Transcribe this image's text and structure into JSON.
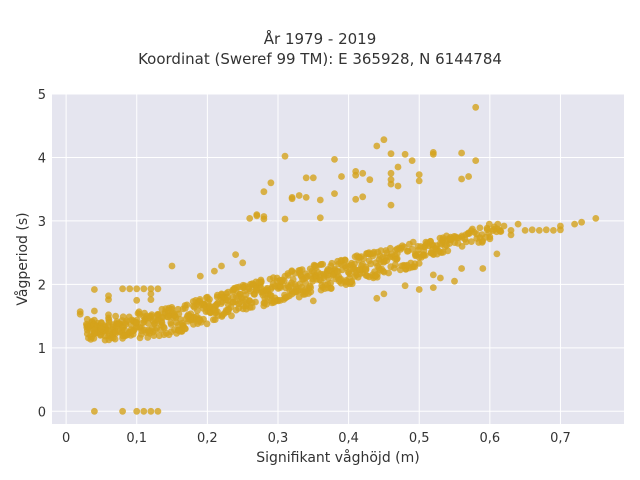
{
  "chart_data": {
    "type": "scatter",
    "title": "År 1979 - 2019",
    "subtitle": "Koordinat (Sweref 99 TM): E 365928, N 6144784",
    "xlabel": "Signifikant våghöjd (m)",
    "ylabel": "Vågperiod (s)",
    "xlim": [
      -0.02,
      0.79
    ],
    "ylim": [
      -0.2,
      5.0
    ],
    "x_ticks": [
      0,
      0.1,
      0.2,
      0.3,
      0.4,
      0.5,
      0.6,
      0.7
    ],
    "x_tick_labels": [
      "0",
      "0,1",
      "0,2",
      "0,3",
      "0,4",
      "0,5",
      "0,6",
      "0,7"
    ],
    "y_ticks": [
      0,
      1,
      2,
      3,
      4,
      5
    ],
    "y_tick_labels": [
      "0",
      "1",
      "2",
      "3",
      "4",
      "5"
    ],
    "grid": true,
    "colors": {
      "marker": "#d4a21c",
      "plot_bg": "#e5e5ef",
      "grid": "#ffffff"
    },
    "points": [
      [
        0.02,
        1.57
      ],
      [
        0.02,
        1.53
      ],
      [
        0.03,
        1.45
      ],
      [
        0.03,
        1.28
      ],
      [
        0.03,
        1.22
      ],
      [
        0.04,
        1.92
      ],
      [
        0.04,
        1.58
      ],
      [
        0.04,
        1.33
      ],
      [
        0.04,
        1.28
      ],
      [
        0.04,
        1.22
      ],
      [
        0.05,
        1.4
      ],
      [
        0.05,
        1.3
      ],
      [
        0.06,
        1.82
      ],
      [
        0.06,
        1.76
      ],
      [
        0.06,
        1.52
      ],
      [
        0.06,
        1.27
      ],
      [
        0.07,
        1.5
      ],
      [
        0.07,
        1.25
      ],
      [
        0.08,
        1.93
      ],
      [
        0.08,
        1.15
      ],
      [
        0.09,
        1.93
      ],
      [
        0.1,
        1.93
      ],
      [
        0.11,
        1.93
      ],
      [
        0.12,
        1.93
      ],
      [
        0.13,
        1.93
      ],
      [
        0.1,
        1.75
      ],
      [
        0.12,
        1.76
      ],
      [
        0.12,
        1.85
      ],
      [
        0.15,
        2.29
      ],
      [
        0.19,
        2.13
      ],
      [
        0.21,
        2.21
      ],
      [
        0.22,
        2.29
      ],
      [
        0.24,
        2.47
      ],
      [
        0.25,
        2.34
      ],
      [
        0.22,
        1.85
      ],
      [
        0.26,
        3.04
      ],
      [
        0.27,
        3.1
      ],
      [
        0.28,
        3.07
      ],
      [
        0.28,
        3.03
      ],
      [
        0.28,
        3.46
      ],
      [
        0.29,
        3.6
      ],
      [
        0.31,
        4.02
      ],
      [
        0.32,
        3.35
      ],
      [
        0.33,
        3.4
      ],
      [
        0.34,
        3.68
      ],
      [
        0.35,
        3.68
      ],
      [
        0.34,
        3.37
      ],
      [
        0.36,
        3.33
      ],
      [
        0.38,
        3.43
      ],
      [
        0.38,
        3.97
      ],
      [
        0.39,
        3.7
      ],
      [
        0.41,
        3.72
      ],
      [
        0.41,
        3.78
      ],
      [
        0.42,
        3.75
      ],
      [
        0.42,
        3.38
      ],
      [
        0.43,
        3.65
      ],
      [
        0.44,
        4.18
      ],
      [
        0.45,
        4.28
      ],
      [
        0.46,
        4.06
      ],
      [
        0.46,
        3.75
      ],
      [
        0.46,
        3.65
      ],
      [
        0.46,
        3.58
      ],
      [
        0.46,
        3.25
      ],
      [
        0.47,
        3.85
      ],
      [
        0.47,
        3.55
      ],
      [
        0.48,
        4.05
      ],
      [
        0.49,
        3.95
      ],
      [
        0.5,
        3.73
      ],
      [
        0.5,
        3.63
      ],
      [
        0.52,
        4.08
      ],
      [
        0.52,
        4.05
      ],
      [
        0.56,
        4.07
      ],
      [
        0.56,
        3.66
      ],
      [
        0.57,
        3.7
      ],
      [
        0.58,
        3.95
      ],
      [
        0.58,
        4.79
      ],
      [
        0.31,
        3.03
      ],
      [
        0.36,
        3.05
      ],
      [
        0.41,
        3.34
      ],
      [
        0.32,
        3.37
      ],
      [
        0.27,
        3.08
      ],
      [
        0.59,
        2.25
      ],
      [
        0.6,
        2.75
      ],
      [
        0.61,
        2.48
      ],
      [
        0.62,
        2.92
      ],
      [
        0.63,
        2.85
      ],
      [
        0.64,
        2.95
      ],
      [
        0.65,
        2.85
      ],
      [
        0.66,
        2.86
      ],
      [
        0.67,
        2.85
      ],
      [
        0.68,
        2.86
      ],
      [
        0.69,
        2.85
      ],
      [
        0.7,
        2.86
      ],
      [
        0.7,
        2.92
      ],
      [
        0.72,
        2.95
      ],
      [
        0.73,
        2.98
      ],
      [
        0.75,
        3.04
      ],
      [
        0.63,
        2.78
      ],
      [
        0.44,
        1.78
      ],
      [
        0.45,
        1.85
      ],
      [
        0.48,
        1.98
      ],
      [
        0.5,
        1.92
      ],
      [
        0.52,
        1.95
      ],
      [
        0.53,
        2.1
      ],
      [
        0.55,
        2.05
      ],
      [
        0.56,
        2.25
      ],
      [
        0.5,
        2.33
      ],
      [
        0.52,
        2.15
      ],
      [
        0.35,
        1.74
      ],
      [
        0.33,
        1.8
      ],
      [
        0.04,
        0
      ],
      [
        0.08,
        0
      ],
      [
        0.1,
        0
      ],
      [
        0.11,
        0
      ],
      [
        0.12,
        0
      ],
      [
        0.13,
        0
      ]
    ],
    "dense_band": {
      "description_points_generated_in_script": true,
      "x_range": [
        0.03,
        0.62
      ],
      "center_line": [
        [
          0.04,
          1.27
        ],
        [
          0.15,
          1.42
        ],
        [
          0.3,
          1.95
        ],
        [
          0.45,
          2.35
        ],
        [
          0.6,
          2.82
        ]
      ],
      "spread": 0.22
    }
  }
}
